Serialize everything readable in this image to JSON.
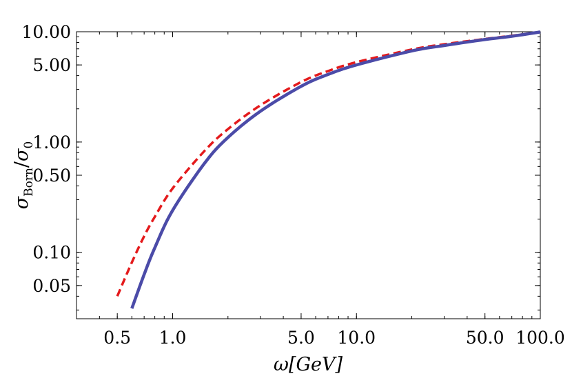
{
  "chart_data": {
    "type": "line",
    "title": "",
    "xlabel_main": "ω[GeV]",
    "ylabel": {
      "sigma1": "σ",
      "sub1": "Born",
      "slash": "/",
      "sigma2": "σ",
      "sub2": "0"
    },
    "xscale": "log",
    "yscale": "log",
    "xlim": [
      0.3,
      100
    ],
    "ylim": [
      0.025,
      10
    ],
    "x_ticks": [
      {
        "value": 0.5,
        "label": "0.5"
      },
      {
        "value": 1.0,
        "label": "1.0"
      },
      {
        "value": 5.0,
        "label": "5.0"
      },
      {
        "value": 10.0,
        "label": "10.0"
      },
      {
        "value": 50.0,
        "label": "50.0"
      },
      {
        "value": 100.0,
        "label": "100.0"
      }
    ],
    "y_ticks": [
      {
        "value": 0.05,
        "label": "0.05"
      },
      {
        "value": 0.1,
        "label": "0.10"
      },
      {
        "value": 0.5,
        "label": "0.50"
      },
      {
        "value": 1.0,
        "label": "1.00"
      },
      {
        "value": 5.0,
        "label": "5.00"
      },
      {
        "value": 10.0,
        "label": "10.00"
      }
    ],
    "grid": false,
    "legend": "none",
    "series": [
      {
        "style": "dashed",
        "color": "#e41a1c",
        "x": [
          0.5,
          0.6,
          0.7,
          0.8,
          1.0,
          1.5,
          2.0,
          3.0,
          5.0,
          7.0,
          10.0,
          20.0,
          30.0,
          50.0,
          70.0,
          100.0
        ],
        "y": [
          0.04,
          0.081,
          0.14,
          0.21,
          0.38,
          0.84,
          1.31,
          2.15,
          3.5,
          4.4,
          5.3,
          6.9,
          7.7,
          8.6,
          9.2,
          9.95
        ]
      },
      {
        "style": "solid",
        "color": "#4b4ba8",
        "x": [
          0.6,
          0.7,
          0.8,
          1.0,
          1.5,
          2.0,
          3.0,
          5.0,
          7.0,
          10.0,
          20.0,
          30.0,
          50.0,
          70.0,
          100.0
        ],
        "y": [
          0.031,
          0.063,
          0.11,
          0.24,
          0.65,
          1.1,
          1.9,
          3.2,
          4.1,
          5.0,
          6.7,
          7.5,
          8.5,
          9.1,
          9.95
        ]
      }
    ]
  }
}
